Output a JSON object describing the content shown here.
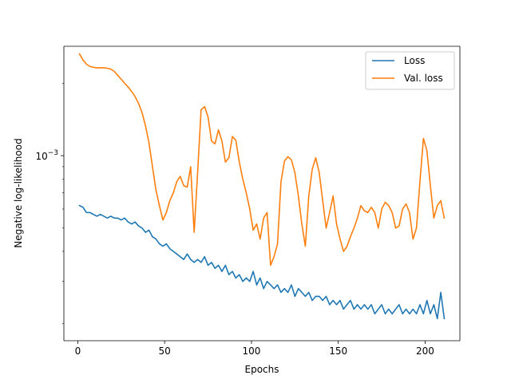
{
  "chart_data": {
    "type": "line",
    "title": "",
    "xlabel": "Epochs",
    "ylabel": "Negative log-likelihood",
    "xlim": [
      -8,
      220
    ],
    "ylim": [
      0.00017,
      0.00285
    ],
    "y_scale": "log",
    "x_ticks": [
      0,
      50,
      100,
      150,
      200
    ],
    "y_tick_labels": [
      {
        "value": 0.001,
        "base": "10",
        "exponent": "−3"
      }
    ],
    "grid": false,
    "legend_position": "top-right",
    "series": [
      {
        "name": "Loss",
        "color": "#1f77b4",
        "x": [
          1,
          3,
          5,
          7,
          9,
          11,
          13,
          15,
          17,
          19,
          21,
          23,
          25,
          27,
          29,
          31,
          33,
          35,
          37,
          39,
          41,
          43,
          45,
          47,
          49,
          51,
          53,
          55,
          57,
          59,
          61,
          63,
          65,
          67,
          69,
          71,
          73,
          75,
          77,
          79,
          81,
          83,
          85,
          87,
          89,
          91,
          93,
          95,
          97,
          99,
          101,
          103,
          105,
          107,
          109,
          111,
          113,
          115,
          117,
          119,
          121,
          123,
          125,
          127,
          129,
          131,
          133,
          135,
          137,
          139,
          141,
          143,
          145,
          147,
          149,
          151,
          153,
          155,
          157,
          159,
          161,
          163,
          165,
          167,
          169,
          171,
          173,
          175,
          177,
          179,
          181,
          183,
          185,
          187,
          189,
          191,
          193,
          195,
          197,
          199,
          201,
          203,
          205,
          207,
          209,
          211
        ],
        "y": [
          0.00062,
          0.00061,
          0.00058,
          0.00058,
          0.00057,
          0.00056,
          0.00057,
          0.00056,
          0.00055,
          0.00056,
          0.00055,
          0.00055,
          0.00054,
          0.00055,
          0.00053,
          0.00052,
          0.00053,
          0.00051,
          0.0005,
          0.00048,
          0.00049,
          0.00046,
          0.00045,
          0.00043,
          0.00042,
          0.00043,
          0.00041,
          0.0004,
          0.00039,
          0.00038,
          0.00037,
          0.00039,
          0.00037,
          0.00036,
          0.00037,
          0.00036,
          0.00038,
          0.00035,
          0.00036,
          0.00034,
          0.00035,
          0.00033,
          0.00035,
          0.00032,
          0.00033,
          0.00031,
          0.00032,
          0.0003,
          0.00031,
          0.0003,
          0.00033,
          0.00029,
          0.00031,
          0.00028,
          0.0003,
          0.00029,
          0.00028,
          0.00029,
          0.00027,
          0.00028,
          0.00027,
          0.00029,
          0.00026,
          0.00028,
          0.00027,
          0.00026,
          0.00027,
          0.00025,
          0.00026,
          0.00026,
          0.00025,
          0.00026,
          0.00024,
          0.00025,
          0.00024,
          0.00025,
          0.00023,
          0.00024,
          0.00025,
          0.00023,
          0.00024,
          0.00023,
          0.00024,
          0.00023,
          0.00024,
          0.00022,
          0.00023,
          0.00024,
          0.00022,
          0.00023,
          0.00022,
          0.00023,
          0.00024,
          0.00022,
          0.00023,
          0.00022,
          0.00023,
          0.00022,
          0.00024,
          0.00022,
          0.00025,
          0.00022,
          0.00024,
          0.00021,
          0.00027,
          0.00021
        ],
        "label_key": "loss_label"
      },
      {
        "name": "Val. loss",
        "color": "#ff7f0e",
        "x": [
          1,
          3,
          5,
          7,
          9,
          11,
          13,
          15,
          17,
          19,
          21,
          23,
          25,
          27,
          29,
          31,
          33,
          35,
          37,
          39,
          41,
          43,
          45,
          47,
          49,
          51,
          53,
          55,
          57,
          59,
          61,
          63,
          65,
          67,
          69,
          71,
          73,
          75,
          77,
          79,
          81,
          83,
          85,
          87,
          89,
          91,
          93,
          95,
          97,
          99,
          101,
          103,
          105,
          107,
          109,
          111,
          113,
          115,
          117,
          119,
          121,
          123,
          125,
          127,
          129,
          131,
          133,
          135,
          137,
          139,
          141,
          143,
          145,
          147,
          149,
          151,
          153,
          155,
          157,
          159,
          161,
          163,
          165,
          167,
          169,
          171,
          173,
          175,
          177,
          179,
          181,
          183,
          185,
          187,
          189,
          191,
          193,
          195,
          197,
          199,
          201,
          203,
          205,
          207,
          209,
          211
        ],
        "y": [
          0.00265,
          0.0025,
          0.0024,
          0.00235,
          0.00233,
          0.00232,
          0.00232,
          0.00232,
          0.00231,
          0.00229,
          0.00224,
          0.00216,
          0.00208,
          0.002,
          0.00193,
          0.00185,
          0.00176,
          0.00165,
          0.00151,
          0.00133,
          0.00113,
          0.0009,
          0.00072,
          0.00062,
          0.00054,
          0.00058,
          0.00065,
          0.0007,
          0.00078,
          0.00082,
          0.00075,
          0.00074,
          0.0009,
          0.00048,
          0.00085,
          0.00155,
          0.0016,
          0.00145,
          0.00115,
          0.00112,
          0.00128,
          0.00115,
          0.00094,
          0.00098,
          0.0012,
          0.00116,
          0.00094,
          0.0008,
          0.0007,
          0.0006,
          0.00049,
          0.00052,
          0.00045,
          0.00055,
          0.00058,
          0.00035,
          0.00038,
          0.00043,
          0.00078,
          0.00095,
          0.00099,
          0.00096,
          0.00085,
          0.00068,
          0.00052,
          0.00042,
          0.00068,
          0.00088,
          0.00098,
          0.00085,
          0.00065,
          0.0005,
          0.00058,
          0.00068,
          0.00052,
          0.00045,
          0.0004,
          0.00042,
          0.00046,
          0.0005,
          0.00055,
          0.00062,
          0.00059,
          0.00058,
          0.00061,
          0.00058,
          0.0005,
          0.0006,
          0.00064,
          0.00062,
          0.00058,
          0.0005,
          0.00051,
          0.0006,
          0.00063,
          0.00058,
          0.00045,
          0.0005,
          0.00078,
          0.00118,
          0.00105,
          0.00075,
          0.00055,
          0.00062,
          0.00065,
          0.00055
        ],
        "label_key": "val_loss_label"
      }
    ]
  }
}
